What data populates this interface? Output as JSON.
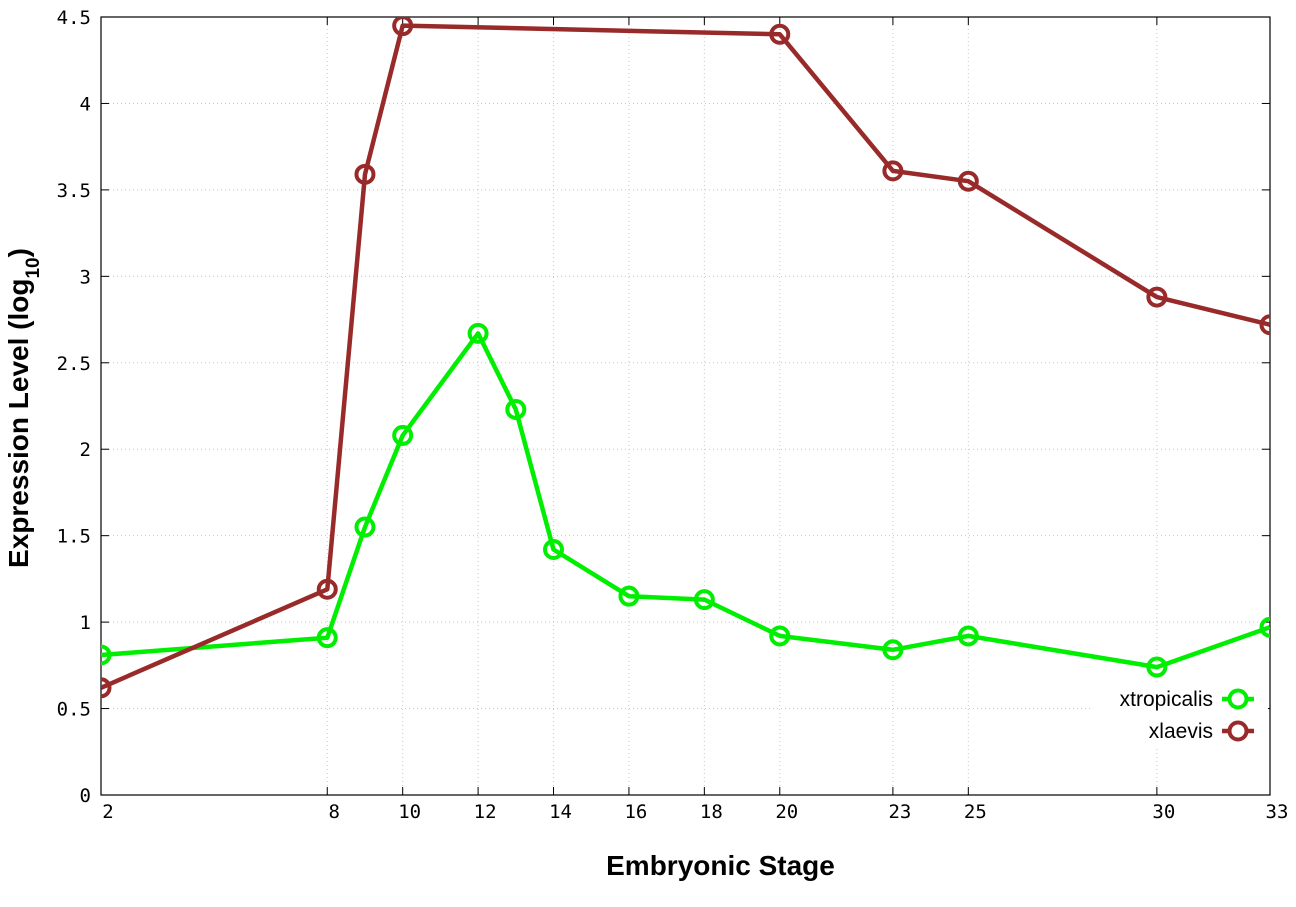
{
  "chart_data": {
    "type": "line",
    "xlabel": "Embryonic Stage",
    "ylabel": "Expression Level (log",
    "ylabel_sub": "10",
    "ylabel_close": ")",
    "xlim": [
      2,
      33
    ],
    "ylim": [
      0,
      4.5
    ],
    "x_ticks": [
      2,
      8,
      10,
      12,
      14,
      16,
      18,
      20,
      23,
      25,
      30,
      33
    ],
    "y_ticks": [
      0,
      0.5,
      1,
      1.5,
      2,
      2.5,
      3,
      3.5,
      4,
      4.5
    ],
    "y_tick_labels": [
      "0",
      "0.5",
      "1",
      "1.5",
      "2",
      "2.5",
      "3",
      "3.5",
      "4",
      "4.5"
    ],
    "grid": true,
    "legend_position": "bottom-right",
    "series": [
      {
        "name": "xtropicalis",
        "color": "#00ee00",
        "x": [
          2,
          8,
          9,
          10,
          12,
          13,
          14,
          16,
          18,
          20,
          23,
          25,
          30,
          33
        ],
        "y": [
          0.81,
          0.91,
          1.55,
          2.08,
          2.67,
          2.23,
          1.42,
          1.15,
          1.13,
          0.92,
          0.84,
          0.92,
          0.74,
          0.97
        ]
      },
      {
        "name": "xlaevis",
        "color": "#992a2a",
        "x": [
          2,
          8,
          9,
          10,
          20,
          23,
          25,
          30,
          33
        ],
        "y": [
          0.62,
          1.19,
          3.59,
          4.45,
          4.4,
          3.61,
          3.55,
          2.88,
          2.72
        ]
      }
    ]
  }
}
